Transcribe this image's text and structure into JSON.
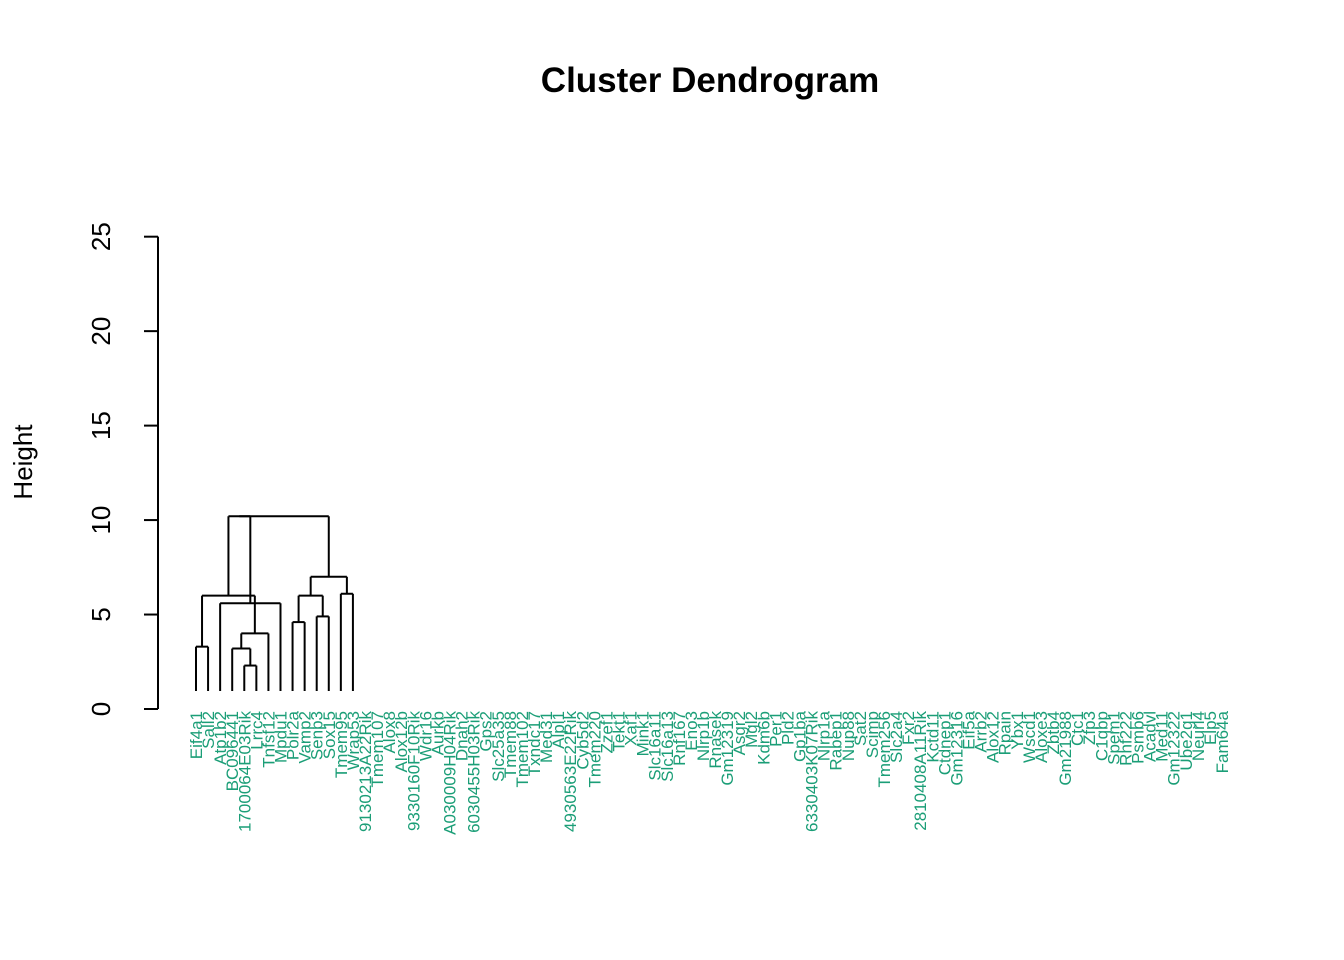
{
  "chart_data": {
    "type": "dendrogram",
    "title": "Cluster Dendrogram",
    "ylabel": "Height",
    "ylim": [
      0,
      28
    ],
    "yticks": [
      0,
      5,
      10,
      15,
      20,
      25
    ],
    "leaf_color": "#1b9e77",
    "line_color": "#000000",
    "leaves": [
      "Eif4a1",
      "Sall2",
      "Atp1b2",
      "BC096441",
      "1700064E03Rik",
      "Lrrc4",
      "Tnfsf12",
      "Mpdu1",
      "Polr2a",
      "Vamp2",
      "Senp3",
      "Sox15",
      "Tmem95",
      "Wrap53",
      "9130213A22Rik",
      "Tmem107",
      "Alox8",
      "Alox12b",
      "9330160F10Rik",
      "Wdr16",
      "Aurkb",
      "A030009H04Rik",
      "Dnah2",
      "6030455H03Rik",
      "Gps2",
      "Slc25a35",
      "Tmem88",
      "Tmem102",
      "Txndc17",
      "Med31",
      "Alpl1",
      "4930563E22Rik",
      "Cyb5d2",
      "Tmem220",
      "Zzef1",
      "Tekt1",
      "Xaf1",
      "Mink1",
      "Slc16a11",
      "Slc16a13",
      "Rnf167",
      "Eno3",
      "Nlrp1b",
      "Rnasek",
      "Gm12319",
      "Asgr2",
      "Mgl2",
      "Kdm6b",
      "Per1",
      "Pld2",
      "Gp1ba",
      "6330403K07Rik",
      "Nlrp1a",
      "Rabep1",
      "Nup88",
      "Sat2",
      "Scimp",
      "Tmem256",
      "Slc2a4",
      "Fxr2",
      "2810408A11Rik",
      "Kctd11",
      "Ctdnep1",
      "Gm12316",
      "Eif5a",
      "Arrb2",
      "Alox12",
      "Rpain",
      "Ybx1",
      "Wscd1",
      "Aloxe3",
      "Zbtb4",
      "Gm21988",
      "Ctc1",
      "Zfp3",
      "C1qbp",
      "Spem1",
      "Rnf222",
      "Psmb6",
      "Acadvl",
      "Med11",
      "Gm12322",
      "Ube2g1",
      "Neurl4",
      "Elp5",
      "Fam64a"
    ],
    "merges": [
      {
        "left": 0,
        "right": 1,
        "height": 3.3
      },
      {
        "left": 4,
        "right": 5,
        "height": 2.3
      },
      {
        "left": 3,
        "right": "m1",
        "height": 3.2
      },
      {
        "left": "m2",
        "right": 6,
        "height": 4.0
      },
      {
        "left": "m0",
        "right": "m3",
        "height": 6.0
      },
      {
        "left": 2,
        "right": 7,
        "height": 5.6
      },
      {
        "left": 8,
        "right": 9,
        "height": 4.6
      },
      {
        "left": 10,
        "right": 11,
        "height": 4.9
      },
      {
        "left": 12,
        "right": 13,
        "height": 6.1
      },
      {
        "left": "m6",
        "right": "m7",
        "height": 6.0
      },
      {
        "left": "m9",
        "right": "m8",
        "height": 7.0
      },
      {
        "left": "m5",
        "right": "m4",
        "height": 10.2
      },
      {
        "left": "m11",
        "right": "m10",
        "height": 10.2
      }
    ]
  }
}
